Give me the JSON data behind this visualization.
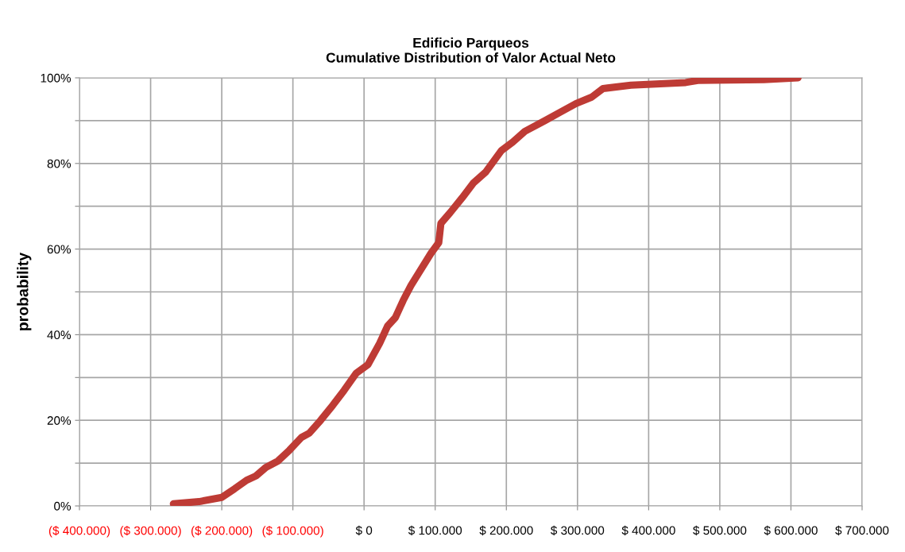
{
  "chart_data": {
    "type": "line",
    "title": "Edificio Parqueos\nCumulative Distribution of Valor Actual Neto",
    "ylabel": "probability",
    "series": [
      {
        "color": "#be3b35",
        "x": [
          -268000,
          -232000,
          -200000,
          -182000,
          -165000,
          -152000,
          -138000,
          -121000,
          -105000,
          -88000,
          -77000,
          -61000,
          -44000,
          -28000,
          -11000,
          5500,
          22000,
          33000,
          44000,
          55000,
          66000,
          79000,
          94000,
          105000,
          108000,
          121000,
          138000,
          154000,
          171000,
          193000,
          209000,
          226000,
          254000,
          276000,
          298000,
          320000,
          336000,
          375000,
          452000,
          469000,
          562000,
          610000
        ],
        "values": [
          0.5,
          1,
          2,
          4,
          6,
          7,
          9,
          10.5,
          13,
          16,
          17,
          20,
          23.5,
          27,
          31,
          33,
          38,
          42,
          44,
          48,
          51.5,
          55,
          59,
          61.5,
          66,
          68.5,
          72,
          75.5,
          78,
          83,
          85,
          87.5,
          90,
          92,
          94,
          95.5,
          97.5,
          98.3,
          98.9,
          99.4,
          99.6,
          100
        ]
      }
    ],
    "xlim": [
      -400000,
      700000
    ],
    "xticks": [
      {
        "value": -400000,
        "label": "($ 400.000)"
      },
      {
        "value": -300000,
        "label": "($ 300.000)"
      },
      {
        "value": -200000,
        "label": "($ 200.000)"
      },
      {
        "value": -100000,
        "label": "($ 100.000)"
      },
      {
        "value": 0,
        "label": "$ 0"
      },
      {
        "value": 100000,
        "label": "$ 100.000"
      },
      {
        "value": 200000,
        "label": "$ 200.000"
      },
      {
        "value": 300000,
        "label": "$ 300.000"
      },
      {
        "value": 400000,
        "label": "$ 400.000"
      },
      {
        "value": 500000,
        "label": "$ 500.000"
      },
      {
        "value": 600000,
        "label": "$ 600.000"
      },
      {
        "value": 700000,
        "label": "$ 700.000"
      }
    ],
    "ylim": [
      0,
      100
    ],
    "yticks": [
      {
        "value": 0,
        "label": "0%"
      },
      {
        "value": 10,
        "label": null
      },
      {
        "value": 20,
        "label": "20%"
      },
      {
        "value": 30,
        "label": null
      },
      {
        "value": 40,
        "label": "40%"
      },
      {
        "value": 50,
        "label": null
      },
      {
        "value": 60,
        "label": "60%"
      },
      {
        "value": 70,
        "label": null
      },
      {
        "value": 80,
        "label": "80%"
      },
      {
        "value": 90,
        "label": null
      },
      {
        "value": 100,
        "label": "100%"
      }
    ],
    "grid": true,
    "legend": false,
    "marker": "none",
    "line_style": "solid"
  }
}
